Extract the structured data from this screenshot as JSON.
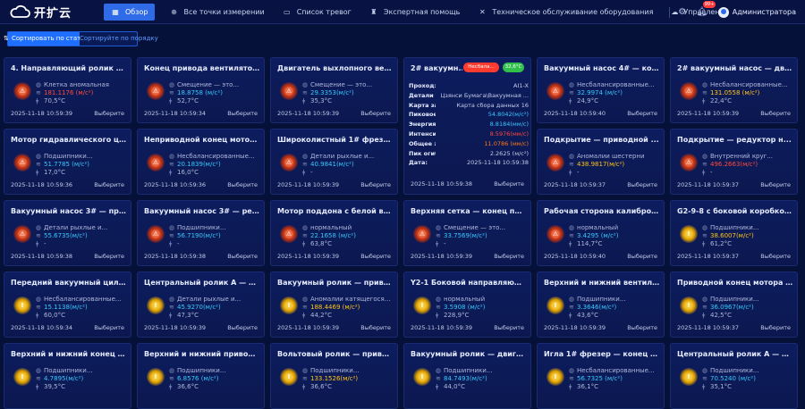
{
  "app": {
    "name": "开扩云"
  },
  "nav": [
    {
      "label": "Обзор",
      "icon": "overview-icon",
      "active": true
    },
    {
      "label": "Все точки измерении",
      "icon": "crosshair-icon",
      "active": false
    },
    {
      "label": "Список тревог",
      "icon": "alarm-list-icon",
      "active": false
    },
    {
      "label": "Экспертная помощь",
      "icon": "expert-icon",
      "active": false
    },
    {
      "label": "Техническое обслуживание оборудования",
      "icon": "wrench-icon",
      "active": false
    },
    {
      "label": "Управление картами",
      "icon": "map-icon",
      "active": false
    }
  ],
  "header": {
    "notifications": "99+",
    "user": "Администратора"
  },
  "sort": {
    "primary": "Сортировать по статусу",
    "secondary": "Сортируйте по порядку"
  },
  "colors": {
    "red": "#ff4a3d",
    "cyan": "#37c9ff",
    "yellow": "#ffc41a",
    "accent": "#2f6be6"
  },
  "cards": [
    {
      "title": "4. Направляющий ролик дл...",
      "status": "red",
      "line1": "Клетка аномальная",
      "value": "181.1176 (м/с²)",
      "vcolor": "red",
      "temp": "70,5°C",
      "date": "2025-11-18 10:59:39",
      "action": "Выберите"
    },
    {
      "title": "Конец привода вентилятора...",
      "status": "red",
      "line1": "Смещение — это...",
      "value": "18.8758 (м/с²)",
      "vcolor": "cyan",
      "temp": "52,7°C",
      "date": "2025-11-18 10:59:34",
      "action": "Выберите"
    },
    {
      "title": "Двигатель выхлопного вент...",
      "status": "red",
      "line1": "Смещение — это...",
      "value": "29.3353(м/с²)",
      "vcolor": "cyan",
      "temp": "35,3°C",
      "date": "2025-11-18 10:59:39",
      "action": "Выберите"
    },
    {
      "title": "Вакуумный насос 4# — коне...",
      "status": "red",
      "line1": "Несбалансированные...",
      "value": "32.9974 (м/с²)",
      "vcolor": "cyan",
      "temp": "24,9°C",
      "date": "2025-11-18 10:59:40",
      "action": "Выберите"
    },
    {
      "title": "2# вакуумный насос — двиг...",
      "status": "red",
      "line1": "Несбалансированные...",
      "value": "131.0558 (м/с²)",
      "vcolor": "yellow",
      "temp": "22,4°C",
      "date": "2025-11-18 10:59:39",
      "action": "Выберите"
    },
    {
      "title": "Мотор гидравлического цел...",
      "status": "red",
      "line1": "Подшипники...",
      "value": "51.7785 (м/с²)",
      "vcolor": "cyan",
      "temp": "17,0°C",
      "date": "2025-11-18 10:59:36",
      "action": "Выберите"
    },
    {
      "title": "Неприводной конец мотора ...",
      "status": "red",
      "line1": "Несбалансированные...",
      "value": "20.1839(м/с²)",
      "vcolor": "cyan",
      "temp": "16,0°C",
      "date": "2025-11-18 10:59:36",
      "action": "Выберите"
    },
    {
      "title": "Широколистный 1# фрезер...",
      "status": "red",
      "line1": "Детали рыхлые и...",
      "value": "40.9841(м/с²)",
      "vcolor": "cyan",
      "temp": "-",
      "date": "2025-11-18 10:59:39",
      "action": "Выберите"
    },
    {
      "title": "Подкрытие — приводной ...",
      "status": "red",
      "line1": "Аномалии шестерни",
      "value": "438.9817(м/с²)",
      "vcolor": "yellow",
      "temp": "-",
      "date": "2025-11-18 10:59:37",
      "action": "Выберите"
    },
    {
      "title": "Подкрытие — редуктор н...",
      "status": "red",
      "line1": "Внутренний круг...",
      "value": "496.2663(м/с²)",
      "vcolor": "red",
      "temp": "-",
      "date": "2025-11-18 10:59:37",
      "action": "Выберите"
    },
    {
      "title": "Вакуумный насос 3# — прив...",
      "status": "red",
      "line1": "Детали рыхлые и...",
      "value": "55.6735(м/с²)",
      "vcolor": "cyan",
      "temp": "-",
      "date": "2025-11-18 10:59:38",
      "action": "Выберите"
    },
    {
      "title": "Вакуумный насос 3# — реду...",
      "status": "red",
      "line1": "Подшипники...",
      "value": "56.7190(м/с²)",
      "vcolor": "cyan",
      "temp": "-",
      "date": "2025-11-18 10:59:38",
      "action": "Выберите"
    },
    {
      "title": "Мотор поддона с белой вод...",
      "status": "red",
      "line1": "нормальный",
      "value": "22.1658 (м/с²)",
      "vcolor": "cyan",
      "temp": "63,8°C",
      "date": "2025-11-18 10:59:39",
      "action": "Выберите"
    },
    {
      "title": "Верхняя сетка — конец прив...",
      "status": "red",
      "line1": "Смещение — это...",
      "value": "33.7569(м/с²)",
      "vcolor": "cyan",
      "temp": "-",
      "date": "2025-11-18 10:59:39",
      "action": "Выберите"
    },
    {
      "title": "Рабочая сторона калиброво...",
      "status": "red",
      "line1": "нормальный",
      "value": "3.4295 (м/с²)",
      "vcolor": "cyan",
      "temp": "114,7°C",
      "date": "2025-11-18 10:59:40",
      "action": "Выберите"
    },
    {
      "title": "G2-9-8 с боковой коробкой ...",
      "status": "yellow",
      "line1": "Подшипники...",
      "value": "38.6007(м/с²)",
      "vcolor": "yellow",
      "temp": "61,2°C",
      "date": "2025-11-18 10:59:37",
      "action": "Выберите"
    },
    {
      "title": "Передний вакуумный цилин...",
      "status": "yellow",
      "line1": "Несбалансированные...",
      "value": "15.1138(м/с²)",
      "vcolor": "cyan",
      "temp": "60,0°C",
      "date": "2025-11-18 10:59:34",
      "action": "Выберите"
    },
    {
      "title": "Центральный ролик A — ко...",
      "status": "yellow",
      "line1": "Детали рыхлые и...",
      "value": "45.9270(м/с²)",
      "vcolor": "cyan",
      "temp": "47,3°C",
      "date": "2025-11-18 10:59:39",
      "action": "Выберите"
    },
    {
      "title": "Вакуумный ролик — привод...",
      "status": "yellow",
      "line1": "Аномалии катящегося...",
      "value": "188.4469 (м/с²)",
      "vcolor": "yellow",
      "temp": "44,2°C",
      "date": "2025-11-18 10:59:39",
      "action": "Выберите"
    },
    {
      "title": "Y2-1 Боковой направляющ...",
      "status": "yellow",
      "line1": "нормальный",
      "value": "3.5908 (м/с²)",
      "vcolor": "cyan",
      "temp": "228,9°C",
      "date": "2025-11-18 10:59:39",
      "action": "Выберите"
    },
    {
      "title": "Верхний и нижний вентилят...",
      "status": "yellow",
      "line1": "Подшипники...",
      "value": "3.3646(м/с²)",
      "vcolor": "cyan",
      "temp": "43,6°C",
      "date": "2025-11-18 10:59:39",
      "action": "Выберите"
    },
    {
      "title": "Приводной конец мотора ст...",
      "status": "yellow",
      "line1": "Подшипники...",
      "value": "36.0967(м/с²)",
      "vcolor": "cyan",
      "temp": "42,5°C",
      "date": "2025-11-18 10:59:37",
      "action": "Выберите"
    },
    {
      "title": "Верхний и нижний конец ве...",
      "status": "yellow",
      "line1": "Подшипники...",
      "value": "4.7895(м/с²)",
      "vcolor": "cyan",
      "temp": "39,5°C",
      "date": "",
      "action": ""
    },
    {
      "title": "Верхний и нижний привод в...",
      "status": "yellow",
      "line1": "Подшипники...",
      "value": "6.8576 (м/с²)",
      "vcolor": "cyan",
      "temp": "36,6°C",
      "date": "",
      "action": ""
    },
    {
      "title": "Вольтовый ролик — привод...",
      "status": "yellow",
      "line1": "Подшипники...",
      "value": "133.1526(м/с²)",
      "vcolor": "yellow",
      "temp": "36,6°C",
      "date": "",
      "action": ""
    },
    {
      "title": "Вакуумный ролик — двигате...",
      "status": "yellow",
      "line1": "Подшипники...",
      "value": "84.7493(м/с²)",
      "vcolor": "cyan",
      "temp": "44,0°C",
      "date": "",
      "action": ""
    },
    {
      "title": "Игла 1# фрезер — конец пр...",
      "status": "yellow",
      "line1": "Несбалансированные...",
      "value": "56.7325 (м/с²)",
      "vcolor": "cyan",
      "temp": "36,1°C",
      "date": "",
      "action": ""
    },
    {
      "title": "Центральный ролик A — мо...",
      "status": "yellow",
      "line1": "Подшипники...",
      "value": "70.5240 (м/с²)",
      "vcolor": "cyan",
      "temp": "35,1°C",
      "date": "",
      "action": ""
    }
  ],
  "detail": {
    "title": "2# вакуумн...",
    "status_pill": "Несбала...",
    "temp_pill": "32,6°C",
    "rows": [
      {
        "k": "Проход:",
        "v": "AI1-X",
        "c": ""
      },
      {
        "k": "Детали т...",
        "v": "Цзянси Бумага\\Вакуумная ...",
        "c": ""
      },
      {
        "k": "Карта зак...",
        "v": "Карта сбора данных 16",
        "c": ""
      },
      {
        "k": "Пиковое ...",
        "v": "54.8042(м/с²)",
        "c": "cyan"
      },
      {
        "k": "Энергия г...",
        "v": "8.8184(мм/с)",
        "c": "cyan"
      },
      {
        "k": "Интенсив...",
        "v": "8.5976(мм/с)",
        "c": "red"
      },
      {
        "k": "Общее эн...",
        "v": "11.0786 (мм/с)",
        "c": "orange"
      },
      {
        "k": "Пик огиб...",
        "v": "2.2625 (м/с²)",
        "c": ""
      },
      {
        "k": "Дата:",
        "v": "2025-11-18 10:59:38",
        "c": ""
      }
    ],
    "date": "2025-11-18 10:59:38",
    "action": "Выберите"
  }
}
